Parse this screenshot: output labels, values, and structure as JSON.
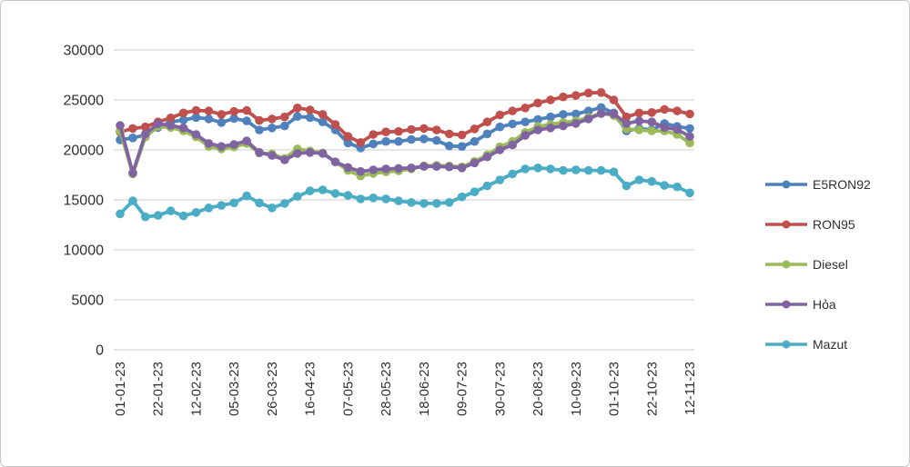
{
  "chart_data": {
    "type": "line",
    "title": "",
    "xlabel": "",
    "ylabel": "",
    "ylim": [
      0,
      30000
    ],
    "y_ticks": [
      0,
      5000,
      10000,
      15000,
      20000,
      25000,
      30000
    ],
    "grid": "horizontal",
    "legend_position": "right",
    "x_label_every": 3,
    "x": [
      "01-01-23",
      "08-01-23",
      "15-01-23",
      "22-01-23",
      "29-01-23",
      "05-02-23",
      "12-02-23",
      "19-02-23",
      "26-02-23",
      "05-03-23",
      "12-03-23",
      "19-03-23",
      "26-03-23",
      "02-04-23",
      "09-04-23",
      "16-04-23",
      "23-04-23",
      "30-04-23",
      "07-05-23",
      "14-05-23",
      "21-05-23",
      "28-05-23",
      "04-06-23",
      "11-06-23",
      "18-06-23",
      "25-06-23",
      "02-07-23",
      "09-07-23",
      "16-07-23",
      "23-07-23",
      "30-07-23",
      "06-08-23",
      "13-08-23",
      "20-08-23",
      "27-08-23",
      "03-09-23",
      "10-09-23",
      "17-09-23",
      "24-09-23",
      "01-10-23",
      "08-10-23",
      "15-10-23",
      "22-10-23",
      "29-10-23",
      "05-11-23",
      "12-11-23"
    ],
    "x_tick_labels": [
      "01-01-23",
      "22-01-23",
      "12-02-23",
      "05-03-23",
      "26-03-23",
      "16-04-23",
      "07-05-23",
      "28-05-23",
      "18-06-23",
      "09-07-23",
      "30-07-23",
      "20-08-23",
      "10-09-23",
      "01-10-23",
      "22-10-23",
      "12-11-23"
    ],
    "series": [
      {
        "name": "E5RON92",
        "id": "e5ron92",
        "color": "#4F81BD",
        "values": [
          21000,
          21200,
          21500,
          22250,
          22800,
          23000,
          23250,
          23100,
          22750,
          23150,
          22900,
          22000,
          22200,
          22400,
          23350,
          23250,
          22800,
          22000,
          20700,
          20200,
          20600,
          20850,
          20850,
          21050,
          21100,
          20950,
          20400,
          20350,
          20850,
          21600,
          22300,
          22600,
          22800,
          23050,
          23300,
          23550,
          23600,
          23900,
          24250,
          23700,
          21900,
          22150,
          22000,
          22650,
          22350,
          22150
        ]
      },
      {
        "name": "RON95",
        "id": "ron95",
        "color": "#C0504D",
        "values": [
          21800,
          22150,
          22300,
          22800,
          23200,
          23700,
          23950,
          23900,
          23550,
          23850,
          23950,
          22950,
          23100,
          23300,
          24200,
          24000,
          23550,
          22550,
          21350,
          20750,
          21550,
          21800,
          21850,
          22050,
          22150,
          22000,
          21600,
          21500,
          22100,
          22800,
          23500,
          23900,
          24200,
          24700,
          25000,
          25300,
          25450,
          25700,
          25750,
          25000,
          23300,
          23700,
          23750,
          24050,
          23900,
          23600
        ]
      },
      {
        "name": "Diesel",
        "id": "diesel",
        "color": "#9BBB59",
        "values": [
          21900,
          17600,
          21300,
          22350,
          22250,
          21900,
          21300,
          20350,
          20100,
          20300,
          20650,
          19700,
          19600,
          19150,
          20100,
          19900,
          19700,
          18800,
          17950,
          17400,
          17650,
          17800,
          17900,
          18100,
          18400,
          18450,
          18400,
          18300,
          18850,
          19500,
          20300,
          20850,
          21750,
          22350,
          22550,
          22750,
          22900,
          23250,
          23650,
          23450,
          22100,
          22000,
          21900,
          21900,
          21550,
          20700
        ]
      },
      {
        "name": "Hỏa",
        "id": "hoa",
        "color": "#8064A2",
        "values": [
          22450,
          17700,
          21600,
          22600,
          22450,
          22200,
          21550,
          20650,
          20350,
          20550,
          20900,
          19750,
          19450,
          19000,
          19650,
          19750,
          19650,
          18800,
          18250,
          17850,
          18000,
          18100,
          18150,
          18200,
          18350,
          18350,
          18300,
          18200,
          18700,
          19300,
          20000,
          20500,
          21450,
          22000,
          22200,
          22400,
          22650,
          23100,
          23650,
          23600,
          22650,
          22900,
          22800,
          22250,
          22050,
          21350
        ]
      },
      {
        "name": "Mazut",
        "id": "mazut",
        "color": "#4BACC6",
        "values": [
          13600,
          14900,
          13300,
          13450,
          13900,
          13400,
          13750,
          14200,
          14450,
          14700,
          15400,
          14700,
          14200,
          14650,
          15350,
          15900,
          16000,
          15650,
          15450,
          15100,
          15200,
          15100,
          14900,
          14750,
          14650,
          14650,
          14750,
          15300,
          15800,
          16400,
          17000,
          17600,
          18100,
          18200,
          18100,
          17950,
          18000,
          17950,
          17950,
          17800,
          16400,
          17000,
          16850,
          16450,
          16300,
          15700
        ]
      }
    ]
  }
}
